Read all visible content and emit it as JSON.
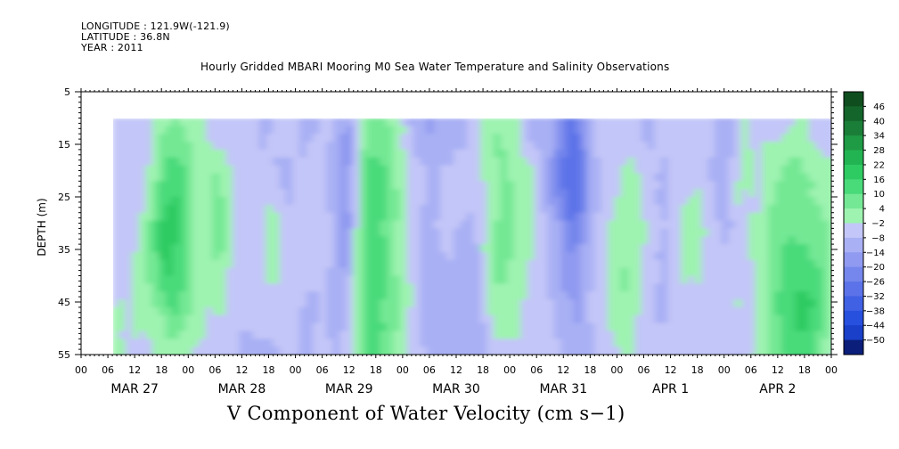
{
  "header": {
    "longitude": "LONGITUDE : 121.9W(-121.9)",
    "latitude": "LATITUDE : 36.8N",
    "year": "YEAR : 2011"
  },
  "chart_data": {
    "type": "heatmap",
    "title": "Hourly Gridded MBARI Mooring M0 Sea Water Temperature and Salinity Observations",
    "xlabel": "V Component of Water Velocity (cm s−1)",
    "ylabel": "DEPTH (m)",
    "ylim": [
      55,
      5
    ],
    "y_ticks": [
      5,
      15,
      25,
      35,
      45,
      55
    ],
    "data_depth_range": [
      10,
      55
    ],
    "x_start": "MAR 27 00:00",
    "x_end": "APR 3 00:00",
    "hour_tick_labels": [
      "00",
      "06",
      "12",
      "18",
      "00",
      "06",
      "12",
      "18",
      "00",
      "06",
      "12",
      "18",
      "00",
      "06",
      "12",
      "18",
      "00",
      "06",
      "12",
      "18",
      "00",
      "06",
      "12",
      "18",
      "00",
      "06",
      "12",
      "18",
      "00"
    ],
    "day_labels": [
      "MAR 27",
      "MAR 28",
      "MAR 29",
      "MAR 30",
      "MAR 31",
      "APR  1",
      "APR  2"
    ],
    "colorbar": {
      "levels": [
        46,
        40,
        34,
        28,
        22,
        16,
        10,
        4,
        -2,
        -8,
        -14,
        -20,
        -26,
        -32,
        -38,
        -44,
        -50
      ],
      "colors": [
        "#0f4d1f",
        "#14652b",
        "#1b7e38",
        "#1f9a45",
        "#22b452",
        "#2ecb62",
        "#49da7a",
        "#74e894",
        "#9ef3b0",
        "#c3c6f8",
        "#a9b0f4",
        "#8f9af0",
        "#7586ec",
        "#5b72e8",
        "#4161e4",
        "#2850de",
        "#1a3fc8",
        "#0a1e7a"
      ]
    }
  }
}
